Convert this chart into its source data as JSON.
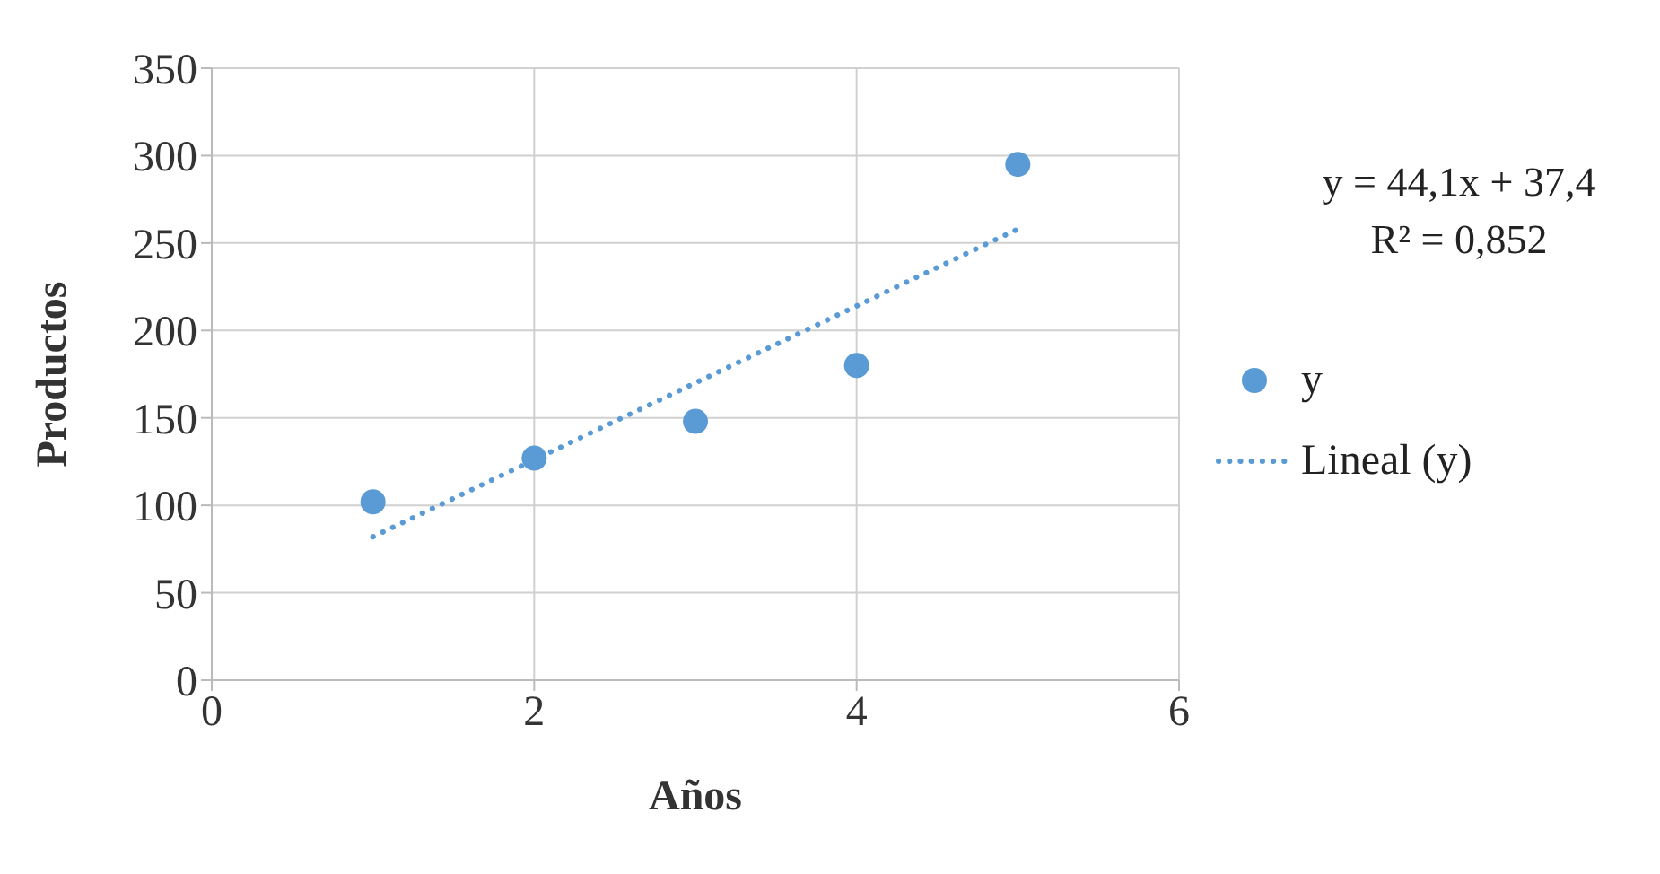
{
  "chart_data": {
    "type": "scatter",
    "xlabel": "Años",
    "ylabel": "Productos",
    "x": [
      1,
      2,
      3,
      4,
      5
    ],
    "series": [
      {
        "name": "y",
        "color": "#5b9bd5",
        "values": [
          102,
          127,
          148,
          180,
          295
        ],
        "marker": "circle"
      },
      {
        "name": "Lineal (y)",
        "type": "line",
        "color": "#5b9bd5",
        "x": [
          1,
          5
        ],
        "values": [
          82,
          258
        ],
        "line_style": "dotted",
        "marker": "none"
      }
    ],
    "xlim": [
      0,
      6
    ],
    "xticks": [
      0,
      2,
      4,
      6
    ],
    "ylim": [
      0,
      350
    ],
    "yticks": [
      0,
      50,
      100,
      150,
      200,
      250,
      300,
      350
    ],
    "grid": true,
    "legend": "right",
    "annotations": [
      "y = 44,1x  + 37,4\nR² = 0,852"
    ]
  }
}
